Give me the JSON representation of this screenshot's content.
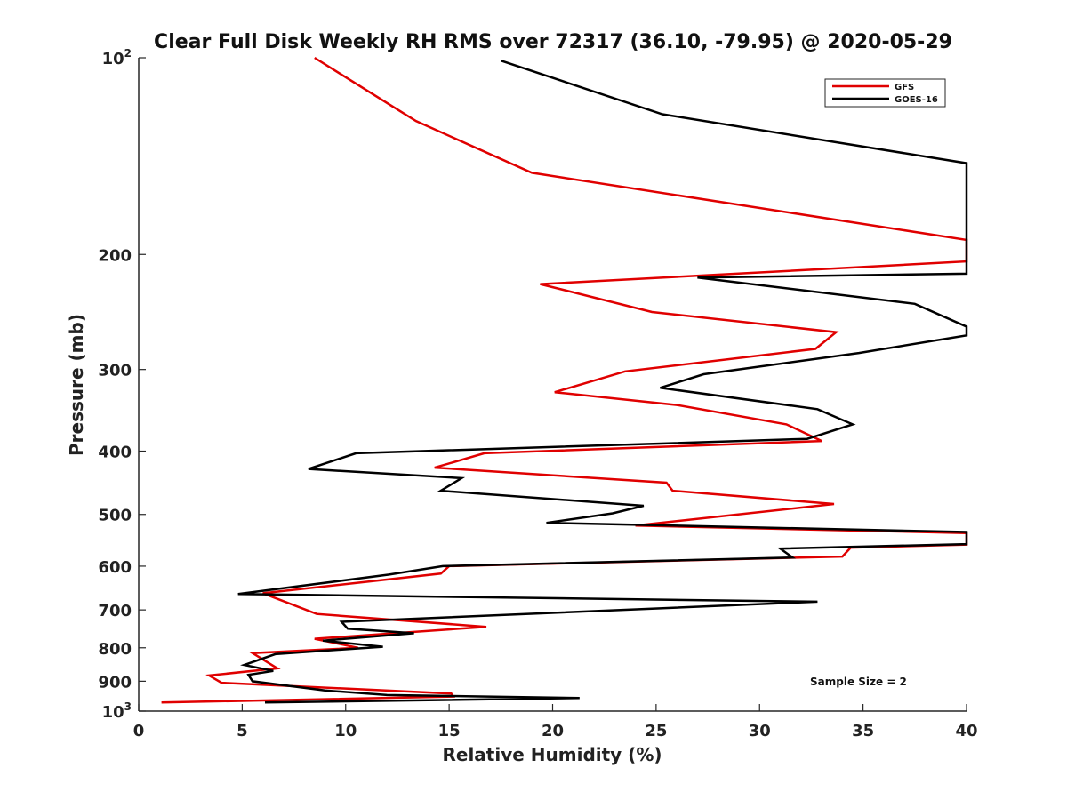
{
  "chart_data": {
    "type": "line",
    "title": "Clear Full Disk Weekly RH RMS over 72317 (36.10, -79.95) @ 2020-05-29",
    "xlabel": "Relative Humidity (%)",
    "ylabel": "Pressure (mb)",
    "xlim": [
      0,
      40
    ],
    "ylim": [
      100,
      1000
    ],
    "y_scale": "log",
    "y_reversed": true,
    "grid": false,
    "legend_position": "top-right",
    "x_ticks": [
      "0",
      "5",
      "10",
      "15",
      "20",
      "25",
      "30",
      "35",
      "40"
    ],
    "y_ticks": [
      {
        "value": 100,
        "base": "10",
        "exp": "2"
      },
      {
        "value": 200,
        "label": "200"
      },
      {
        "value": 300,
        "label": "300"
      },
      {
        "value": 400,
        "label": "400"
      },
      {
        "value": 500,
        "label": "500"
      },
      {
        "value": 600,
        "label": "600"
      },
      {
        "value": 700,
        "label": "700"
      },
      {
        "value": 800,
        "label": "800"
      },
      {
        "value": 900,
        "label": "900"
      },
      {
        "value": 1000,
        "base": "10",
        "exp": "3"
      }
    ],
    "annotation": "Sample Size = 2",
    "series": [
      {
        "name": "GFS",
        "color": "#e00000",
        "points": [
          [
            8.5,
            100
          ],
          [
            13.4,
            125
          ],
          [
            19.0,
            150
          ],
          [
            40.0,
            190
          ],
          [
            40.0,
            205
          ],
          [
            19.4,
            222
          ],
          [
            24.8,
            245
          ],
          [
            33.7,
            263
          ],
          [
            32.7,
            279
          ],
          [
            23.5,
            302
          ],
          [
            20.1,
            325
          ],
          [
            26.0,
            340
          ],
          [
            31.3,
            364
          ],
          [
            33.0,
            386
          ],
          [
            16.7,
            403
          ],
          [
            14.3,
            424
          ],
          [
            25.5,
            447
          ],
          [
            25.8,
            460
          ],
          [
            33.6,
            482
          ],
          [
            24.0,
            520
          ],
          [
            40.0,
            534
          ],
          [
            40.0,
            556
          ],
          [
            34.4,
            562
          ],
          [
            34.0,
            580
          ],
          [
            15.0,
            600
          ],
          [
            14.6,
            616
          ],
          [
            6.0,
            660
          ],
          [
            8.6,
            710
          ],
          [
            16.8,
            743
          ],
          [
            8.5,
            775
          ],
          [
            10.6,
            800
          ],
          [
            5.5,
            815
          ],
          [
            6.7,
            860
          ],
          [
            3.4,
            882
          ],
          [
            4.0,
            905
          ],
          [
            15.1,
            940
          ],
          [
            15.2,
            950
          ],
          [
            1.1,
            970
          ]
        ]
      },
      {
        "name": "GOES-16",
        "color": "#000000",
        "points": [
          [
            17.5,
            101
          ],
          [
            25.3,
            122
          ],
          [
            40.0,
            145
          ],
          [
            40.0,
            214
          ],
          [
            27.0,
            217
          ],
          [
            37.5,
            238
          ],
          [
            40.0,
            258
          ],
          [
            40.0,
            266
          ],
          [
            34.8,
            283
          ],
          [
            27.3,
            305
          ],
          [
            25.2,
            320
          ],
          [
            32.8,
            345
          ],
          [
            34.5,
            364
          ],
          [
            32.3,
            383
          ],
          [
            10.5,
            403
          ],
          [
            8.2,
            426
          ],
          [
            15.6,
            440
          ],
          [
            14.6,
            460
          ],
          [
            24.4,
            485
          ],
          [
            22.9,
            498
          ],
          [
            19.7,
            515
          ],
          [
            40.0,
            532
          ],
          [
            40.0,
            555
          ],
          [
            31.0,
            564
          ],
          [
            31.6,
            582
          ],
          [
            14.7,
            600
          ],
          [
            12.1,
            618
          ],
          [
            4.8,
            662
          ],
          [
            32.8,
            680
          ],
          [
            9.8,
            730
          ],
          [
            10.1,
            748
          ],
          [
            13.3,
            760
          ],
          [
            8.9,
            780
          ],
          [
            11.8,
            797
          ],
          [
            6.6,
            818
          ],
          [
            5.1,
            850
          ],
          [
            6.5,
            868
          ],
          [
            5.3,
            880
          ],
          [
            5.5,
            900
          ],
          [
            9.0,
            930
          ],
          [
            12.0,
            945
          ],
          [
            21.3,
            955
          ],
          [
            6.1,
            970
          ]
        ]
      }
    ]
  }
}
